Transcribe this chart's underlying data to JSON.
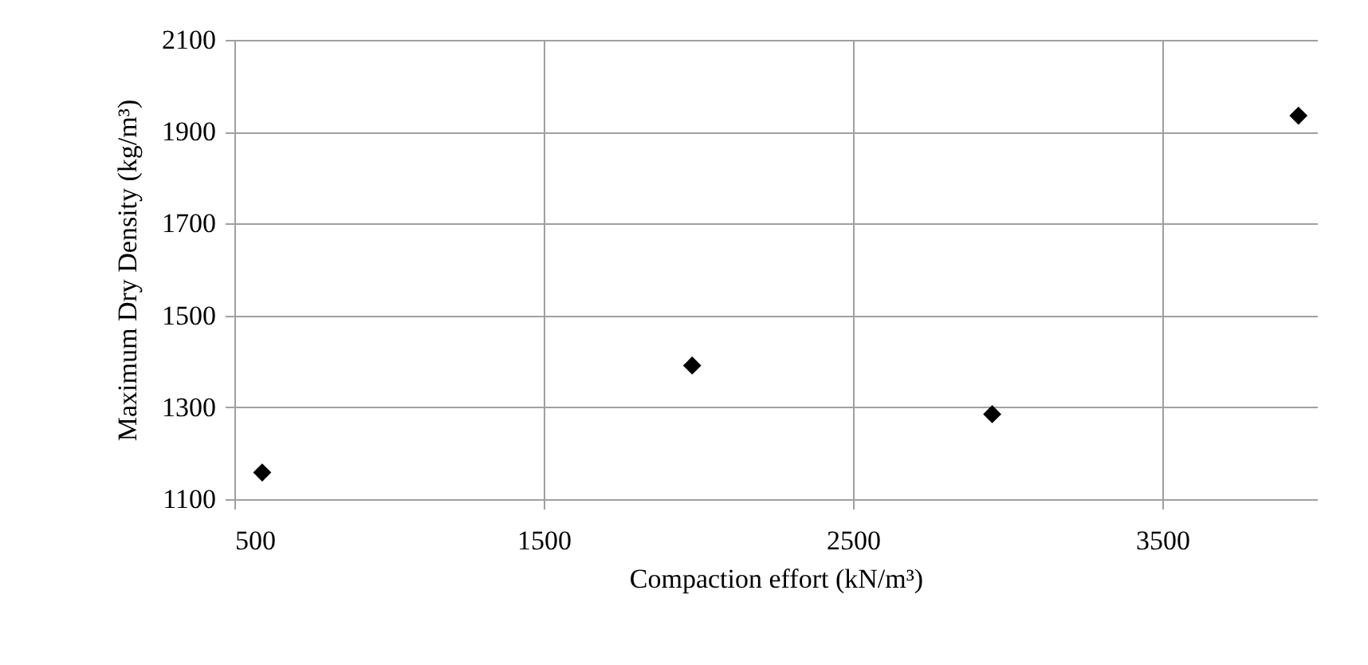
{
  "chart_data": {
    "type": "scatter",
    "xlabel": "Compaction effort (kN/m³)",
    "ylabel": "Maximum Dry Density (kg/m³)",
    "x": [
      590,
      1980,
      2950,
      3940
    ],
    "series": [
      {
        "color": "#000000",
        "values": [
          1158,
          1391,
          1285,
          1935
        ]
      }
    ],
    "xlim": [
      500,
      4000
    ],
    "xticks": [
      500,
      1500,
      2500,
      3500
    ],
    "ylim": [
      1100,
      2100
    ],
    "yticks": [
      1100,
      1300,
      1500,
      1700,
      1900,
      2100
    ],
    "grid": true,
    "marker": "diamond",
    "legend": false
  }
}
